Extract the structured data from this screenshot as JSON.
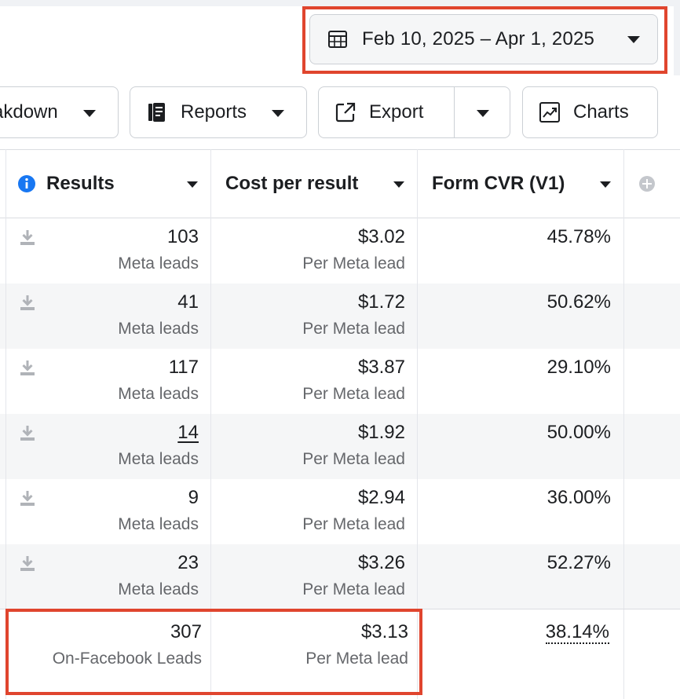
{
  "date_range": {
    "label": "Feb 10, 2025 – Apr 1, 2025",
    "icon": "calendar-icon"
  },
  "toolbar": {
    "breakdown_label": "akdown",
    "reports_label": "Reports",
    "export_label": "Export",
    "charts_label": "Charts"
  },
  "columns": {
    "results": "Results",
    "cost_per_result": "Cost per result",
    "form_cvr": "Form CVR (V1)"
  },
  "rows": [
    {
      "results": "103",
      "results_sub": "Meta leads",
      "cost": "$3.02",
      "cost_sub": "Per Meta lead",
      "cvr": "45.78%"
    },
    {
      "results": "41",
      "results_sub": "Meta leads",
      "cost": "$1.72",
      "cost_sub": "Per Meta lead",
      "cvr": "50.62%"
    },
    {
      "results": "117",
      "results_sub": "Meta leads",
      "cost": "$3.87",
      "cost_sub": "Per Meta lead",
      "cvr": "29.10%"
    },
    {
      "results": "14",
      "results_sub": "Meta leads",
      "cost": "$1.92",
      "cost_sub": "Per Meta lead",
      "cvr": "50.00%"
    },
    {
      "results": "9",
      "results_sub": "Meta leads",
      "cost": "$2.94",
      "cost_sub": "Per Meta lead",
      "cvr": "36.00%"
    },
    {
      "results": "23",
      "results_sub": "Meta leads",
      "cost": "$3.26",
      "cost_sub": "Per Meta lead",
      "cvr": "52.27%"
    }
  ],
  "totals": {
    "results": "307",
    "results_sub": "On-Facebook Leads",
    "cost": "$3.13",
    "cost_sub": "Per Meta lead",
    "cvr": "38.14%"
  },
  "colors": {
    "highlight": "#e0452e",
    "info": "#1877f2",
    "shade": "#f5f6f7"
  }
}
